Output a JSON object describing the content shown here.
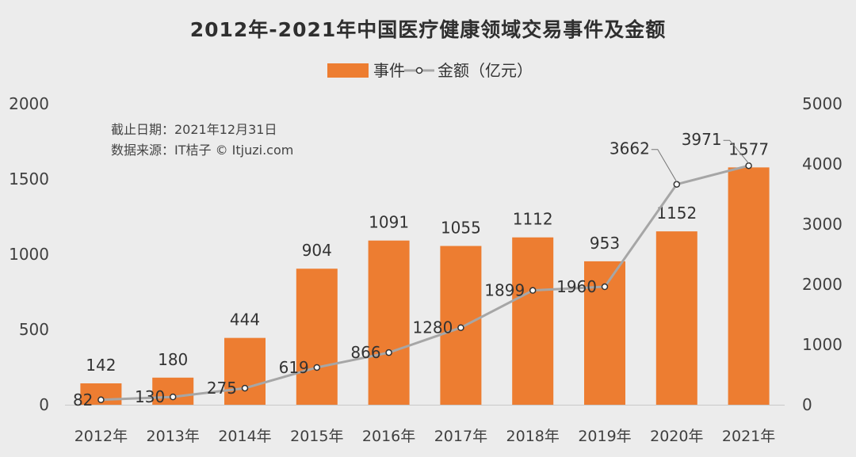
{
  "chart_data": {
    "type": "bar",
    "title": "2012年-2021年中国医疗健康领域交易事件及金额",
    "categories": [
      "2012年",
      "2013年",
      "2014年",
      "2015年",
      "2016年",
      "2017年",
      "2018年",
      "2019年",
      "2020年",
      "2021年"
    ],
    "series": [
      {
        "name": "事件",
        "type": "bar",
        "axis": "left",
        "color": "#ed7d31",
        "values": [
          142,
          180,
          444,
          904,
          1091,
          1055,
          1112,
          953,
          1152,
          1577
        ]
      },
      {
        "name": "金额（亿元）",
        "type": "line",
        "axis": "right",
        "color": "#a6a6a6",
        "values": [
          82,
          130,
          275,
          619,
          866,
          1280,
          1899,
          1960,
          3662,
          3971
        ]
      }
    ],
    "y_left": {
      "min": 0,
      "max": 2000,
      "ticks": [
        0,
        500,
        1000,
        1500,
        2000
      ]
    },
    "y_right": {
      "min": 0,
      "max": 5000,
      "ticks": [
        0,
        1000,
        2000,
        3000,
        4000,
        5000
      ]
    },
    "legend_position": "top-center",
    "grid": false
  },
  "notes": {
    "cutoff": "截止日期：2021年12月31日",
    "source": "数据来源：IT桔子 © Itjuzi.com"
  }
}
